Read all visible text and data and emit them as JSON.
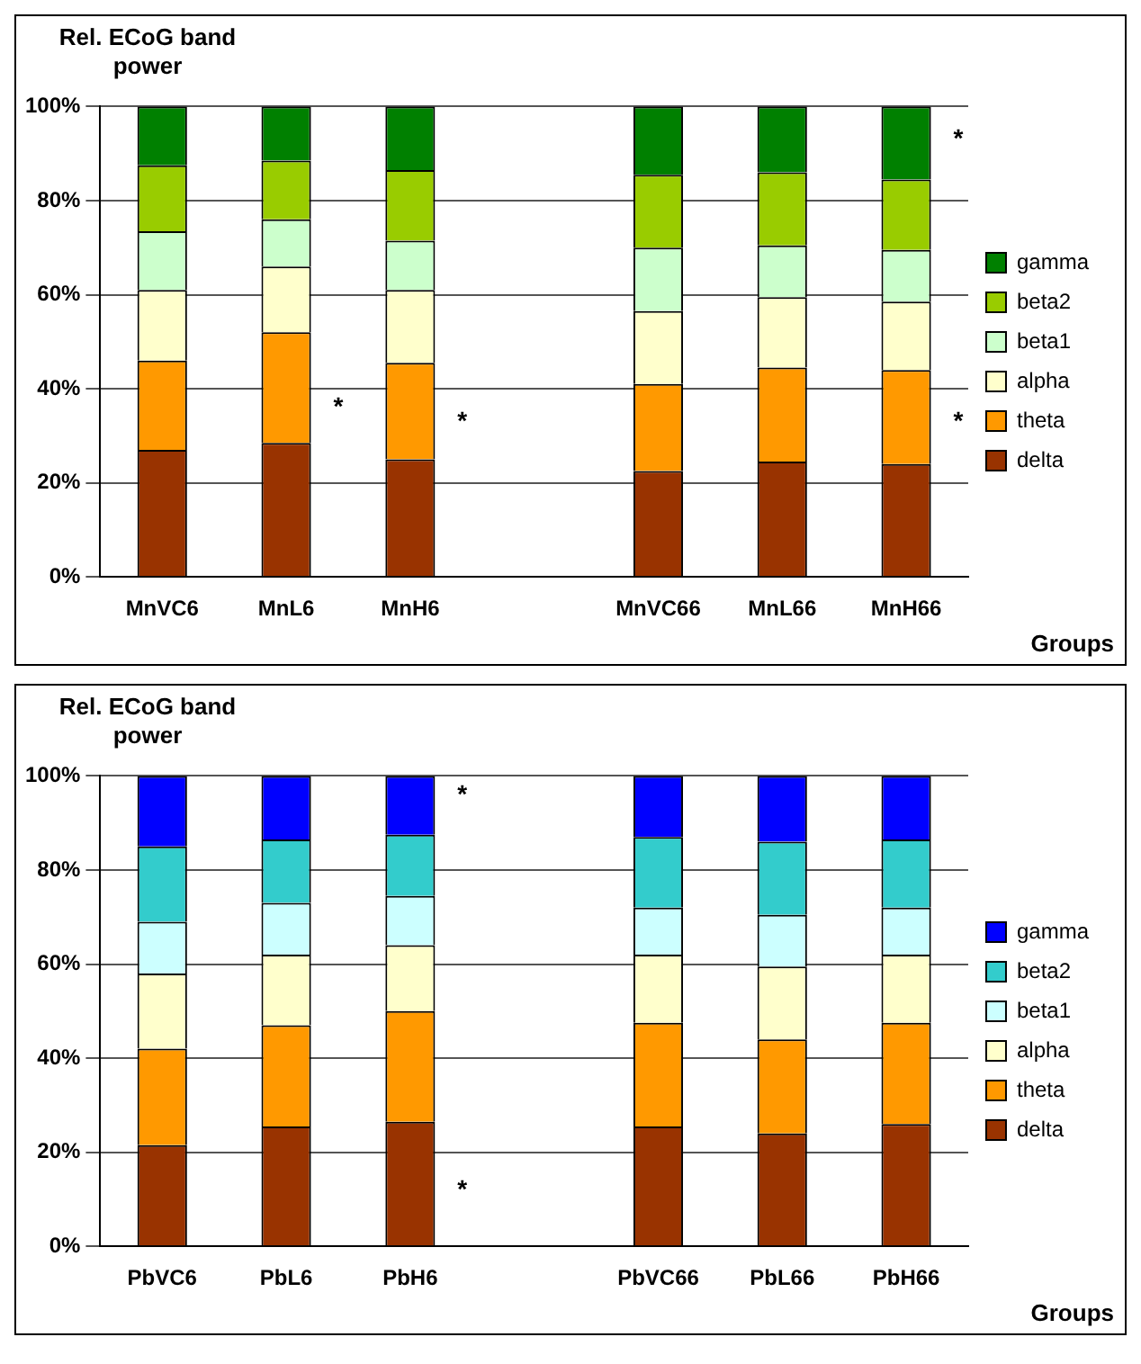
{
  "chart_data": [
    {
      "type": "bar",
      "stacked": true,
      "ylabel": "Rel. ECoG band power",
      "xlabel": "Groups",
      "categories": [
        "MnVC6",
        "MnL6",
        "MnH6",
        null,
        "MnVC66",
        "MnL66",
        "MnH66"
      ],
      "ylim": [
        0,
        100
      ],
      "yticks": [
        {
          "value": 0,
          "label": "0%"
        },
        {
          "value": 20,
          "label": "20%"
        },
        {
          "value": 40,
          "label": "40%"
        },
        {
          "value": 60,
          "label": "60%"
        },
        {
          "value": 80,
          "label": "80%"
        },
        {
          "value": 100,
          "label": "100%"
        }
      ],
      "grid": "y",
      "legend": "right",
      "series": [
        {
          "name": "delta",
          "color": "#993300",
          "values": [
            27,
            28.5,
            25,
            null,
            22.5,
            24.5,
            24
          ]
        },
        {
          "name": "theta",
          "color": "#ff9900",
          "values": [
            19,
            23.5,
            20.5,
            null,
            18.5,
            20,
            20
          ]
        },
        {
          "name": "alpha",
          "color": "#ffffcc",
          "values": [
            15,
            14,
            15.5,
            null,
            15.5,
            15,
            14.5
          ]
        },
        {
          "name": "beta1",
          "color": "#ccffcc",
          "values": [
            12.5,
            10,
            10.5,
            null,
            13.5,
            11,
            11
          ]
        },
        {
          "name": "beta2",
          "color": "#99cc00",
          "values": [
            14,
            12.5,
            15,
            null,
            15.5,
            15.5,
            15
          ]
        },
        {
          "name": "gamma",
          "color": "#008000",
          "values": [
            12.5,
            11.5,
            13.5,
            null,
            14.5,
            14,
            15.5
          ]
        }
      ],
      "annotations": [
        "*",
        "*",
        "*",
        "*"
      ]
    },
    {
      "type": "bar",
      "stacked": true,
      "ylabel": "Rel. ECoG band power",
      "xlabel": "Groups",
      "categories": [
        "PbVC6",
        "PbL6",
        "PbH6",
        null,
        "PbVC66",
        "PbL66",
        "PbH66"
      ],
      "ylim": [
        0,
        100
      ],
      "yticks": [
        {
          "value": 0,
          "label": "0%"
        },
        {
          "value": 20,
          "label": "20%"
        },
        {
          "value": 40,
          "label": "40%"
        },
        {
          "value": 60,
          "label": "60%"
        },
        {
          "value": 80,
          "label": "80%"
        },
        {
          "value": 100,
          "label": "100%"
        }
      ],
      "grid": "y",
      "legend": "right",
      "series": [
        {
          "name": "delta",
          "color": "#993300",
          "values": [
            21.5,
            25.5,
            26.5,
            null,
            25.5,
            24,
            26
          ]
        },
        {
          "name": "theta",
          "color": "#ff9900",
          "values": [
            20.5,
            21.5,
            23.5,
            null,
            22,
            20,
            21.5
          ]
        },
        {
          "name": "alpha",
          "color": "#ffffcc",
          "values": [
            16,
            15,
            14,
            null,
            14.5,
            15.5,
            14.5
          ]
        },
        {
          "name": "beta1",
          "color": "#ccffff",
          "values": [
            11,
            11,
            10.5,
            null,
            10,
            11,
            10
          ]
        },
        {
          "name": "beta2",
          "color": "#33cccc",
          "values": [
            16,
            13.5,
            13,
            null,
            15,
            15.5,
            14.5
          ]
        },
        {
          "name": "gamma",
          "color": "#0000ff",
          "values": [
            15,
            13.5,
            12.5,
            null,
            13,
            14,
            13.5
          ]
        }
      ],
      "annotations": [
        "*",
        "*"
      ]
    }
  ]
}
